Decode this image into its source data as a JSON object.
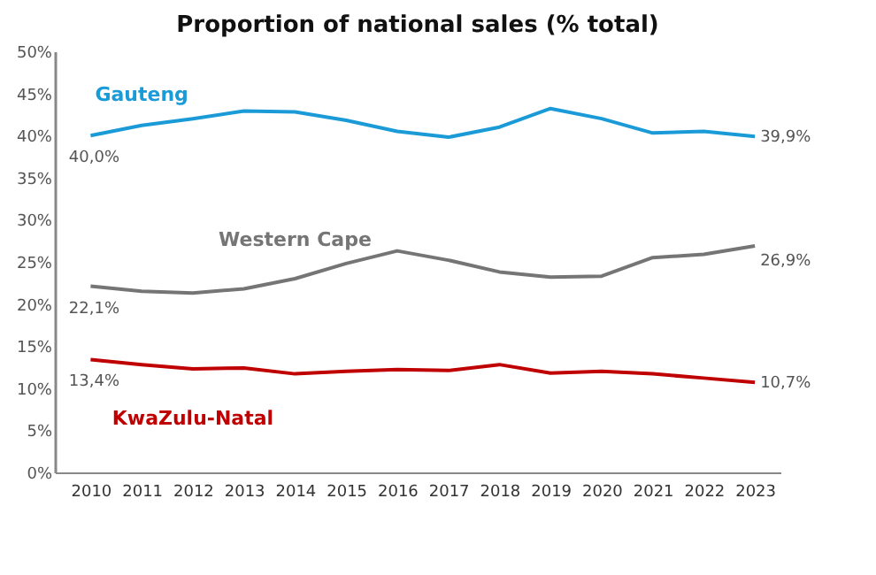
{
  "chart_data": {
    "type": "line",
    "title": "Proportion of national sales (% total)",
    "categories": [
      "2010",
      "2011",
      "2012",
      "2013",
      "2014",
      "2015",
      "2016",
      "2017",
      "2018",
      "2019",
      "2020",
      "2021",
      "2022",
      "2023"
    ],
    "ylim": [
      0,
      50
    ],
    "yticks": [
      {
        "value": 0,
        "label": "0%"
      },
      {
        "value": 5,
        "label": "5%"
      },
      {
        "value": 10,
        "label": "10%"
      },
      {
        "value": 15,
        "label": "15%"
      },
      {
        "value": 20,
        "label": "20%"
      },
      {
        "value": 25,
        "label": "25%"
      },
      {
        "value": 30,
        "label": "30%"
      },
      {
        "value": 35,
        "label": "35%"
      },
      {
        "value": 40,
        "label": "40%"
      },
      {
        "value": 45,
        "label": "45%"
      },
      {
        "value": 50,
        "label": "50%"
      }
    ],
    "grid": false,
    "marker": "none",
    "line_style": "solid",
    "series": [
      {
        "name": "Gauteng",
        "color": "#1a9bd7",
        "values": [
          40.0,
          41.2,
          42.0,
          42.9,
          42.8,
          41.8,
          40.5,
          39.8,
          41.0,
          43.2,
          42.0,
          40.3,
          40.5,
          39.9
        ],
        "value_labels": [
          "40,0%",
          null,
          null,
          null,
          null,
          null,
          null,
          null,
          null,
          null,
          null,
          null,
          null,
          "39,9%"
        ]
      },
      {
        "name": "Western Cape",
        "color": "#757575",
        "values": [
          22.1,
          21.5,
          21.3,
          21.8,
          23.0,
          24.8,
          26.3,
          25.2,
          23.8,
          23.2,
          23.3,
          25.5,
          25.9,
          26.9
        ],
        "value_labels": [
          "22,1%",
          null,
          null,
          null,
          null,
          null,
          null,
          null,
          null,
          null,
          null,
          null,
          null,
          "26,9%"
        ]
      },
      {
        "name": "KwaZulu-Natal",
        "color": "#c00000",
        "values": [
          13.4,
          12.8,
          12.3,
          12.4,
          11.7,
          12.0,
          12.2,
          12.1,
          12.8,
          11.8,
          12.0,
          11.7,
          11.2,
          10.7
        ],
        "value_labels": [
          "13,4%",
          null,
          null,
          null,
          null,
          null,
          null,
          null,
          null,
          null,
          null,
          null,
          null,
          "10,7%"
        ]
      }
    ]
  }
}
